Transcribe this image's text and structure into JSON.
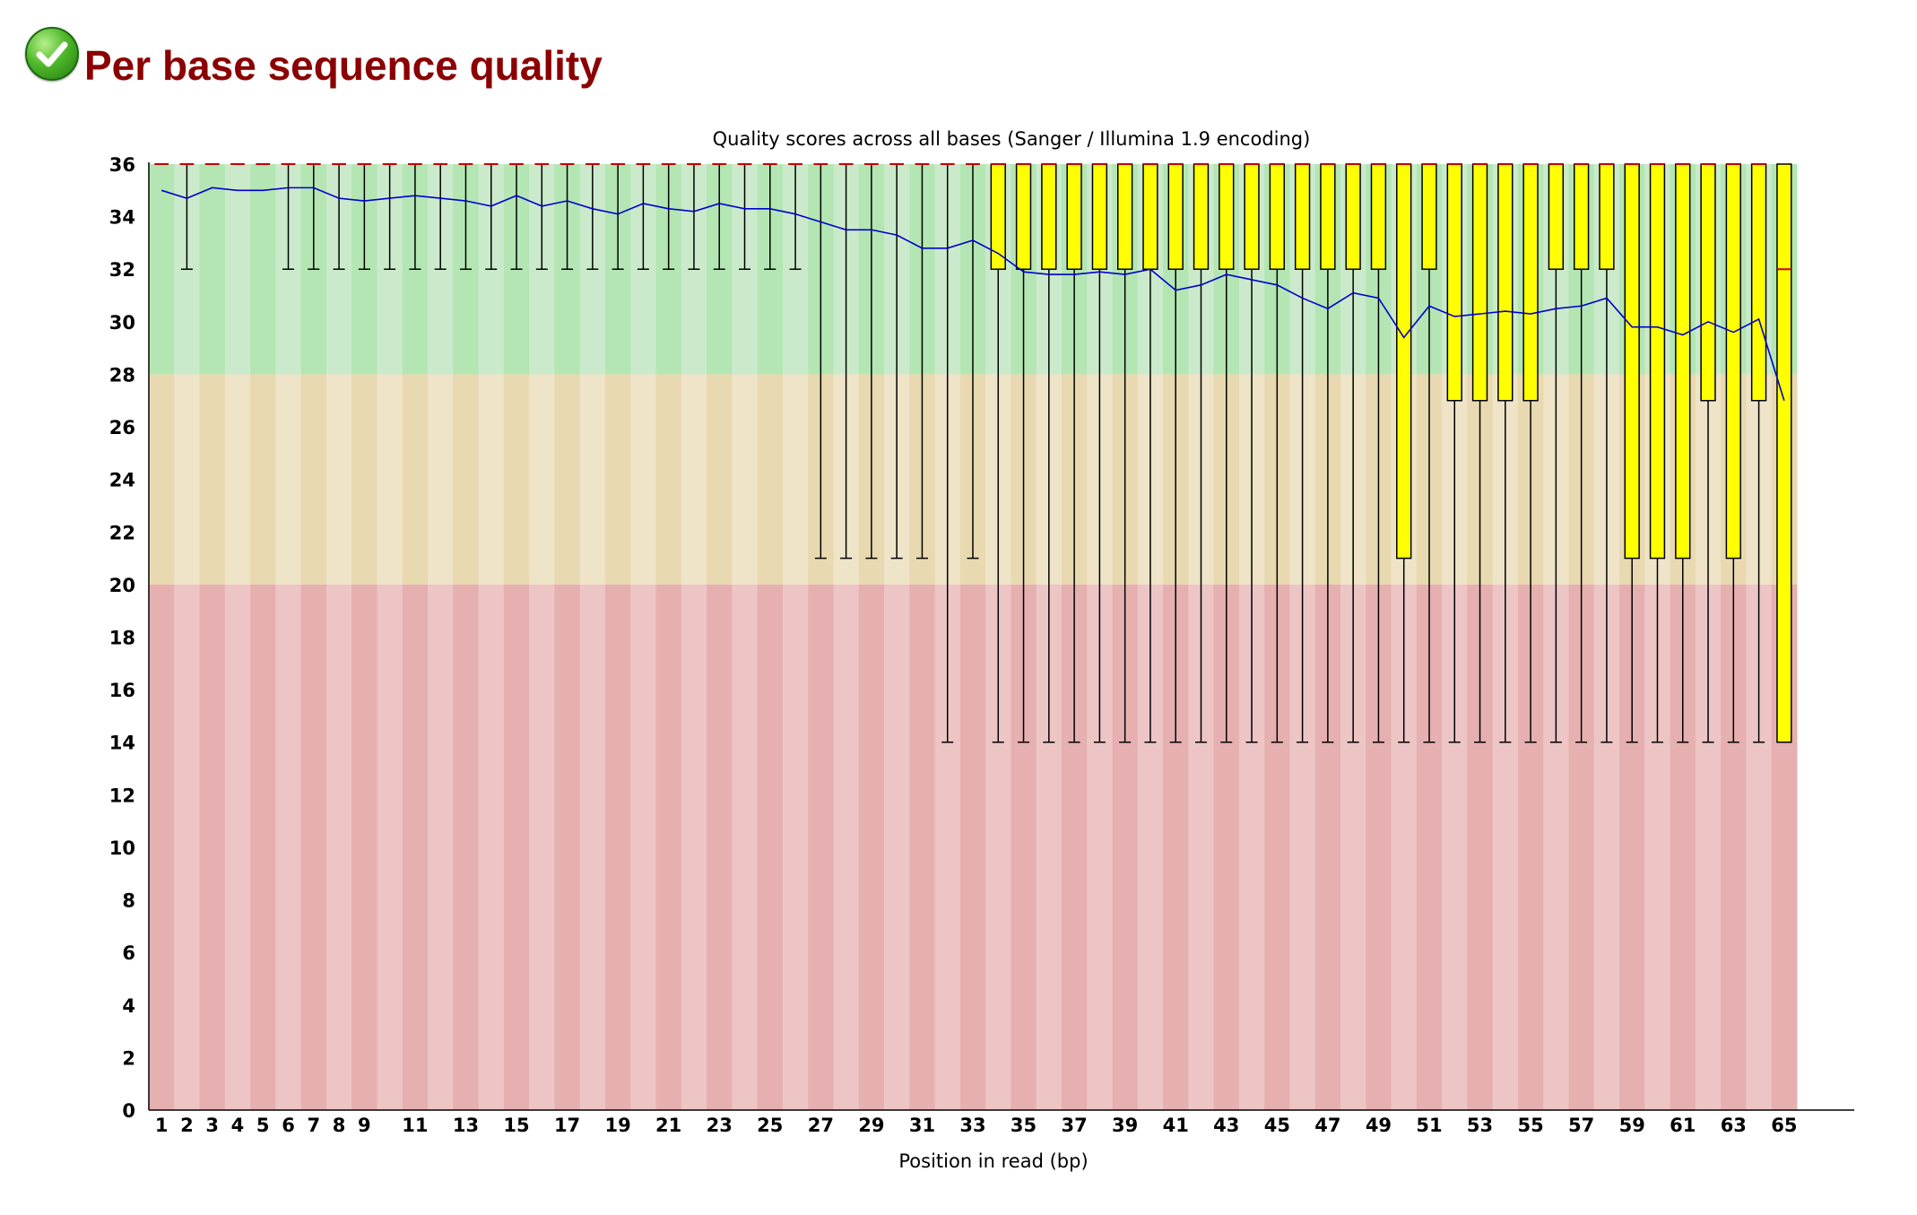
{
  "header": {
    "title": "Per base sequence quality",
    "status_icon": "check-circle-icon",
    "status_color": "#3aa51d"
  },
  "chart_data": {
    "type": "box",
    "title": "Quality scores across all bases (Sanger / Illumina 1.9 encoding)",
    "xlabel": "Position in read (bp)",
    "ylabel": "",
    "ylim": [
      0,
      36
    ],
    "yticks": [
      0,
      2,
      4,
      6,
      8,
      10,
      12,
      14,
      16,
      18,
      20,
      22,
      24,
      26,
      28,
      30,
      32,
      34,
      36
    ],
    "xtick_labels": [
      "1",
      "2",
      "3",
      "4",
      "5",
      "6",
      "7",
      "8",
      "9",
      "11",
      "13",
      "15",
      "17",
      "19",
      "21",
      "23",
      "25",
      "27",
      "29",
      "31",
      "33",
      "35",
      "37",
      "39",
      "41",
      "43",
      "45",
      "47",
      "49",
      "51",
      "53",
      "55",
      "57",
      "59",
      "61",
      "63",
      "65"
    ],
    "x_start_positions": [
      1,
      2,
      3,
      4,
      5,
      6,
      7,
      8,
      9,
      10,
      11,
      12,
      13,
      14,
      15,
      16,
      17,
      18,
      19,
      20,
      21,
      22,
      23,
      24,
      25,
      26,
      27,
      28,
      29,
      30,
      31,
      32,
      33,
      34,
      35,
      36,
      37
    ],
    "bands": [
      {
        "from": 28,
        "to": 36,
        "colors": [
          "#b3e6b3",
          "#cbeacb"
        ]
      },
      {
        "from": 20,
        "to": 28,
        "colors": [
          "#e8d9b0",
          "#efe3c8"
        ]
      },
      {
        "from": 0,
        "to": 20,
        "colors": [
          "#e6b0b0",
          "#edc5c5"
        ]
      }
    ],
    "box_color": "#ffff00",
    "median_color": "#cc0000",
    "mean_color": "#0000cc",
    "mean": [
      35,
      34.7,
      35.1,
      35,
      35,
      35.1,
      35.1,
      34.7,
      34.6,
      34.7,
      34.8,
      34.7,
      34.6,
      34.4,
      34.8,
      34.4,
      34.6,
      34.3,
      34.1,
      34.5,
      34.3,
      34.2,
      34.5,
      34.3,
      34.3,
      34.1,
      33.8,
      33.5,
      33.5,
      33.3,
      32.8,
      32.8,
      33.1,
      32.6,
      31.9,
      31.8,
      31.8,
      31.9,
      31.8,
      32,
      31.2,
      31.4,
      31.8,
      31.6,
      31.4,
      30.9,
      30.5,
      31.1,
      30.9,
      29.4,
      30.6,
      30.2,
      30.3,
      30.4,
      30.3,
      30.5,
      30.6,
      30.9,
      29.8,
      29.8,
      29.5,
      30,
      29.6,
      30.1,
      27
    ],
    "median": [
      36,
      36,
      36,
      36,
      36,
      36,
      36,
      36,
      36,
      36,
      36,
      36,
      36,
      36,
      36,
      36,
      36,
      36,
      36,
      36,
      36,
      36,
      36,
      36,
      36,
      36,
      36,
      36,
      36,
      36,
      36,
      36,
      36,
      36,
      36,
      36,
      36,
      36,
      36,
      36,
      36,
      36,
      36,
      36,
      36,
      36,
      36,
      36,
      36,
      36,
      36,
      36,
      36,
      36,
      36,
      36,
      36,
      36,
      36,
      36,
      36,
      36,
      36,
      36,
      32
    ],
    "q1": [
      36,
      36,
      36,
      36,
      36,
      36,
      36,
      36,
      36,
      36,
      36,
      36,
      36,
      36,
      36,
      36,
      36,
      36,
      36,
      36,
      36,
      36,
      36,
      36,
      36,
      36,
      36,
      36,
      36,
      36,
      36,
      36,
      36,
      32,
      32,
      32,
      32,
      32,
      32,
      32,
      32,
      32,
      32,
      32,
      32,
      32,
      32,
      32,
      32,
      21,
      32,
      27,
      27,
      27,
      27,
      32,
      32,
      32,
      21,
      21,
      21,
      27,
      21,
      27,
      14
    ],
    "q3": [
      36,
      36,
      36,
      36,
      36,
      36,
      36,
      36,
      36,
      36,
      36,
      36,
      36,
      36,
      36,
      36,
      36,
      36,
      36,
      36,
      36,
      36,
      36,
      36,
      36,
      36,
      36,
      36,
      36,
      36,
      36,
      36,
      36,
      36,
      36,
      36,
      36,
      36,
      36,
      36,
      36,
      36,
      36,
      36,
      36,
      36,
      36,
      36,
      36,
      36,
      36,
      36,
      36,
      36,
      36,
      36,
      36,
      36,
      36,
      36,
      36,
      36,
      36,
      36,
      36
    ],
    "lower_whisker": [
      36,
      32,
      36,
      36,
      36,
      32,
      32,
      32,
      32,
      32,
      32,
      32,
      32,
      32,
      32,
      32,
      32,
      32,
      32,
      32,
      32,
      32,
      32,
      32,
      32,
      32,
      21,
      21,
      21,
      21,
      21,
      14,
      21,
      14,
      14,
      14,
      14,
      14,
      14,
      14,
      14,
      14,
      14,
      14,
      14,
      14,
      14,
      14,
      14,
      14,
      14,
      14,
      14,
      14,
      14,
      14,
      14,
      14,
      14,
      14,
      14,
      14,
      14,
      14,
      14
    ],
    "upper_whisker": [
      36,
      36,
      36,
      36,
      36,
      36,
      36,
      36,
      36,
      36,
      36,
      36,
      36,
      36,
      36,
      36,
      36,
      36,
      36,
      36,
      36,
      36,
      36,
      36,
      36,
      36,
      36,
      36,
      36,
      36,
      36,
      36,
      36,
      36,
      36,
      36,
      36,
      36,
      36,
      36,
      36,
      36,
      36,
      36,
      36,
      36,
      36,
      36,
      36,
      36,
      36,
      36,
      36,
      36,
      36,
      36,
      36,
      36,
      36,
      36,
      36,
      36,
      36,
      36,
      36
    ],
    "grid": false,
    "legend": "none"
  }
}
